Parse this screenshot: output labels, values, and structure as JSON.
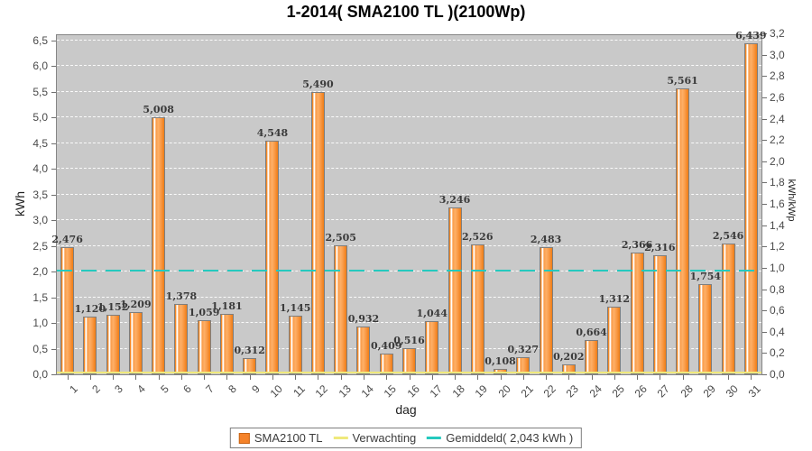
{
  "chart_data": {
    "type": "bar",
    "title": "1-2014( SMA2100 TL )(2100Wp)",
    "xlabel": "dag",
    "ylabel_left": "kWh",
    "ylabel_right": "kWh/kWp",
    "ylim_left": [
      0,
      6.5
    ],
    "ylim_right": [
      0,
      3.2
    ],
    "yticks_left": [
      "0,0",
      "0,5",
      "1,0",
      "1,5",
      "2,0",
      "2,5",
      "3,0",
      "3,5",
      "4,0",
      "4,5",
      "5,0",
      "5,5",
      "6,0",
      "6,5"
    ],
    "yticks_right": [
      "0,0",
      "0,2",
      "0,4",
      "0,6",
      "0,8",
      "1,0",
      "1,2",
      "1,4",
      "1,6",
      "1,8",
      "2,0",
      "2,2",
      "2,4",
      "2,6",
      "2,8",
      "3,0",
      "3,2"
    ],
    "grid": "horizontal dashed white lines at each 0.5 kWh",
    "legend_position": "bottom",
    "decimal_separator": ",",
    "categories": [
      1,
      2,
      3,
      4,
      5,
      6,
      7,
      8,
      9,
      10,
      11,
      12,
      13,
      14,
      15,
      16,
      17,
      18,
      19,
      20,
      21,
      22,
      23,
      24,
      25,
      26,
      27,
      28,
      29,
      30,
      31
    ],
    "series": [
      {
        "name": "SMA2100 TL",
        "type": "bar",
        "color": "#F5832A",
        "values": [
          2.476,
          1.12,
          1.152,
          1.209,
          5.008,
          1.378,
          1.059,
          1.181,
          0.312,
          4.548,
          1.145,
          5.49,
          2.505,
          0.932,
          0.409,
          0.516,
          1.044,
          3.246,
          2.526,
          0.108,
          0.327,
          2.483,
          0.202,
          0.664,
          1.312,
          2.366,
          2.316,
          5.561,
          1.754,
          2.546,
          6.439
        ]
      },
      {
        "name": "Verwachting",
        "type": "line",
        "color": "#EFE97C",
        "constant_value": 0
      }
    ],
    "average_line": {
      "label": "Gemiddeld( 2,043 kWh )",
      "value": 2.043,
      "color": "#25C9BE"
    }
  },
  "colors": {
    "plot_background": "#C9C9C9",
    "page_background": "#FFFFFF",
    "bar_fill": "#F5832A",
    "average_line": "#25C9BE",
    "expectation_line": "#EFE97C"
  }
}
